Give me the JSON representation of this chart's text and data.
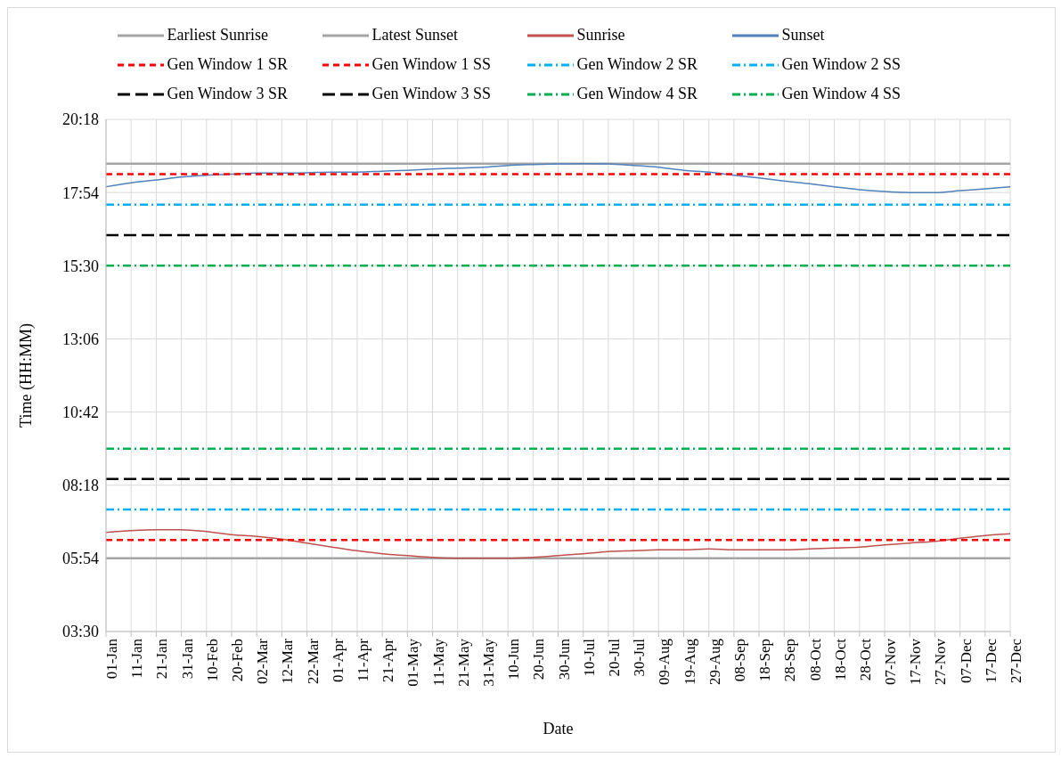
{
  "chart_data": {
    "type": "line",
    "xlabel": "Date",
    "ylabel": "Time (HH:MM)",
    "categories": [
      "01-Jan",
      "11-Jan",
      "21-Jan",
      "31-Jan",
      "10-Feb",
      "20-Feb",
      "02-Mar",
      "12-Mar",
      "22-Mar",
      "01-Apr",
      "11-Apr",
      "21-Apr",
      "01-May",
      "11-May",
      "21-May",
      "31-May",
      "10-Jun",
      "20-Jun",
      "30-Jun",
      "10-Jul",
      "20-Jul",
      "30-Jul",
      "09-Aug",
      "19-Aug",
      "29-Aug",
      "08-Sep",
      "18-Sep",
      "28-Sep",
      "08-Oct",
      "18-Oct",
      "28-Oct",
      "07-Nov",
      "17-Nov",
      "27-Nov",
      "07-Dec",
      "17-Dec",
      "27-Dec"
    ],
    "ylim": [
      3.5,
      20.3
    ],
    "yticks": [
      {
        "value": 3.5,
        "label": "03:30"
      },
      {
        "value": 5.9,
        "label": "05:54"
      },
      {
        "value": 8.3,
        "label": "08:18"
      },
      {
        "value": 10.7,
        "label": "10:42"
      },
      {
        "value": 13.1,
        "label": "13:06"
      },
      {
        "value": 15.5,
        "label": "15:30"
      },
      {
        "value": 17.9,
        "label": "17:54"
      },
      {
        "value": 20.3,
        "label": "20:18"
      }
    ],
    "grid": true,
    "legend": "top",
    "marker": "none",
    "series": [
      {
        "name": "Earliest Sunrise",
        "color": "#a5a5a5",
        "line_style": "solid",
        "values": [
          5.9,
          5.9,
          5.9,
          5.9,
          5.9,
          5.9,
          5.9,
          5.9,
          5.9,
          5.9,
          5.9,
          5.9,
          5.9,
          5.9,
          5.9,
          5.9,
          5.9,
          5.9,
          5.9,
          5.9,
          5.9,
          5.9,
          5.9,
          5.9,
          5.9,
          5.9,
          5.9,
          5.9,
          5.9,
          5.9,
          5.9,
          5.9,
          5.9,
          5.9,
          5.9,
          5.9,
          5.9
        ]
      },
      {
        "name": "Latest Sunset",
        "color": "#a5a5a5",
        "line_style": "solid",
        "values": [
          18.85,
          18.85,
          18.85,
          18.85,
          18.85,
          18.85,
          18.85,
          18.85,
          18.85,
          18.85,
          18.85,
          18.85,
          18.85,
          18.85,
          18.85,
          18.85,
          18.85,
          18.85,
          18.85,
          18.85,
          18.85,
          18.85,
          18.85,
          18.85,
          18.85,
          18.85,
          18.85,
          18.85,
          18.85,
          18.85,
          18.85,
          18.85,
          18.85,
          18.85,
          18.85,
          18.85,
          18.85
        ]
      },
      {
        "name": "Sunrise",
        "color": "#c0504d",
        "line_style": "solid",
        "values": [
          6.75,
          6.81,
          6.84,
          6.84,
          6.78,
          6.68,
          6.62,
          6.53,
          6.4,
          6.27,
          6.15,
          6.05,
          5.99,
          5.93,
          5.9,
          5.9,
          5.9,
          5.93,
          5.99,
          6.05,
          6.12,
          6.15,
          6.18,
          6.18,
          6.21,
          6.18,
          6.18,
          6.18,
          6.21,
          6.24,
          6.27,
          6.34,
          6.4,
          6.46,
          6.56,
          6.65,
          6.71
        ]
      },
      {
        "name": "Sunset",
        "color": "#4f81bd",
        "line_style": "solid",
        "values": [
          18.09,
          18.22,
          18.31,
          18.41,
          18.47,
          18.5,
          18.54,
          18.54,
          18.55,
          18.57,
          18.57,
          18.6,
          18.63,
          18.67,
          18.7,
          18.73,
          18.79,
          18.82,
          18.84,
          18.85,
          18.84,
          18.79,
          18.73,
          18.63,
          18.57,
          18.47,
          18.38,
          18.28,
          18.19,
          18.09,
          17.99,
          17.93,
          17.9,
          17.9,
          17.96,
          18.02,
          18.09
        ]
      },
      {
        "name": "Gen Window 1 SR",
        "color": "#ff0000",
        "line_style": "dashed",
        "values": [
          6.5,
          6.5,
          6.5,
          6.5,
          6.5,
          6.5,
          6.5,
          6.5,
          6.5,
          6.5,
          6.5,
          6.5,
          6.5,
          6.5,
          6.5,
          6.5,
          6.5,
          6.5,
          6.5,
          6.5,
          6.5,
          6.5,
          6.5,
          6.5,
          6.5,
          6.5,
          6.5,
          6.5,
          6.5,
          6.5,
          6.5,
          6.5,
          6.5,
          6.5,
          6.5,
          6.5,
          6.5
        ]
      },
      {
        "name": "Gen Window 1 SS",
        "color": "#ff0000",
        "line_style": "dashed",
        "values": [
          18.5,
          18.5,
          18.5,
          18.5,
          18.5,
          18.5,
          18.5,
          18.5,
          18.5,
          18.5,
          18.5,
          18.5,
          18.5,
          18.5,
          18.5,
          18.5,
          18.5,
          18.5,
          18.5,
          18.5,
          18.5,
          18.5,
          18.5,
          18.5,
          18.5,
          18.5,
          18.5,
          18.5,
          18.5,
          18.5,
          18.5,
          18.5,
          18.5,
          18.5,
          18.5,
          18.5,
          18.5
        ]
      },
      {
        "name": "Gen Window 2 SR",
        "color": "#00b0f0",
        "line_style": "dashdot",
        "values": [
          7.5,
          7.5,
          7.5,
          7.5,
          7.5,
          7.5,
          7.5,
          7.5,
          7.5,
          7.5,
          7.5,
          7.5,
          7.5,
          7.5,
          7.5,
          7.5,
          7.5,
          7.5,
          7.5,
          7.5,
          7.5,
          7.5,
          7.5,
          7.5,
          7.5,
          7.5,
          7.5,
          7.5,
          7.5,
          7.5,
          7.5,
          7.5,
          7.5,
          7.5,
          7.5,
          7.5,
          7.5
        ]
      },
      {
        "name": "Gen Window 2 SS",
        "color": "#00b0f0",
        "line_style": "dashdot",
        "values": [
          17.5,
          17.5,
          17.5,
          17.5,
          17.5,
          17.5,
          17.5,
          17.5,
          17.5,
          17.5,
          17.5,
          17.5,
          17.5,
          17.5,
          17.5,
          17.5,
          17.5,
          17.5,
          17.5,
          17.5,
          17.5,
          17.5,
          17.5,
          17.5,
          17.5,
          17.5,
          17.5,
          17.5,
          17.5,
          17.5,
          17.5,
          17.5,
          17.5,
          17.5,
          17.5,
          17.5,
          17.5
        ]
      },
      {
        "name": "Gen Window 3 SR",
        "color": "#000000",
        "line_style": "longdash",
        "values": [
          8.5,
          8.5,
          8.5,
          8.5,
          8.5,
          8.5,
          8.5,
          8.5,
          8.5,
          8.5,
          8.5,
          8.5,
          8.5,
          8.5,
          8.5,
          8.5,
          8.5,
          8.5,
          8.5,
          8.5,
          8.5,
          8.5,
          8.5,
          8.5,
          8.5,
          8.5,
          8.5,
          8.5,
          8.5,
          8.5,
          8.5,
          8.5,
          8.5,
          8.5,
          8.5,
          8.5,
          8.5
        ]
      },
      {
        "name": "Gen Window 3 SS",
        "color": "#000000",
        "line_style": "longdash",
        "values": [
          16.5,
          16.5,
          16.5,
          16.5,
          16.5,
          16.5,
          16.5,
          16.5,
          16.5,
          16.5,
          16.5,
          16.5,
          16.5,
          16.5,
          16.5,
          16.5,
          16.5,
          16.5,
          16.5,
          16.5,
          16.5,
          16.5,
          16.5,
          16.5,
          16.5,
          16.5,
          16.5,
          16.5,
          16.5,
          16.5,
          16.5,
          16.5,
          16.5,
          16.5,
          16.5,
          16.5,
          16.5
        ]
      },
      {
        "name": "Gen Window 4 SR",
        "color": "#00b050",
        "line_style": "dashdot",
        "values": [
          9.5,
          9.5,
          9.5,
          9.5,
          9.5,
          9.5,
          9.5,
          9.5,
          9.5,
          9.5,
          9.5,
          9.5,
          9.5,
          9.5,
          9.5,
          9.5,
          9.5,
          9.5,
          9.5,
          9.5,
          9.5,
          9.5,
          9.5,
          9.5,
          9.5,
          9.5,
          9.5,
          9.5,
          9.5,
          9.5,
          9.5,
          9.5,
          9.5,
          9.5,
          9.5,
          9.5,
          9.5
        ]
      },
      {
        "name": "Gen Window 4 SS",
        "color": "#00b050",
        "line_style": "dashdot",
        "values": [
          15.5,
          15.5,
          15.5,
          15.5,
          15.5,
          15.5,
          15.5,
          15.5,
          15.5,
          15.5,
          15.5,
          15.5,
          15.5,
          15.5,
          15.5,
          15.5,
          15.5,
          15.5,
          15.5,
          15.5,
          15.5,
          15.5,
          15.5,
          15.5,
          15.5,
          15.5,
          15.5,
          15.5,
          15.5,
          15.5,
          15.5,
          15.5,
          15.5,
          15.5,
          15.5,
          15.5,
          15.5
        ]
      }
    ]
  }
}
